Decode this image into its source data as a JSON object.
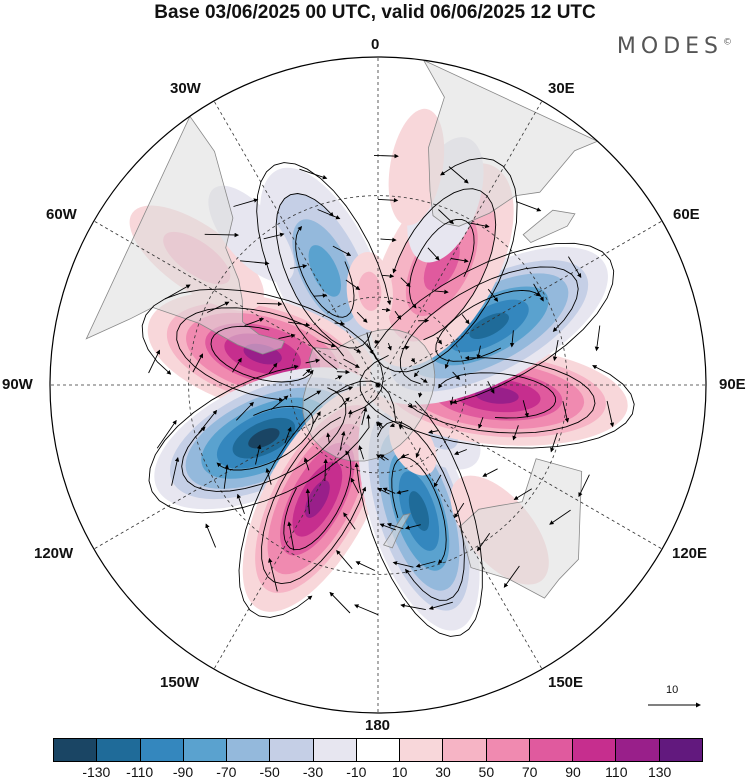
{
  "title": "Base 03/06/2025 00 UTC, valid 06/06/2025 12 UTC",
  "brand": "MODES",
  "brand_mark": "©",
  "longitude_labels": {
    "top": "0",
    "top_left": "30W",
    "top_right": "30E",
    "upper_left": "60W",
    "upper_right": "60E",
    "left": "90W",
    "right": "90E",
    "lower_left": "120W",
    "lower_right": "120E",
    "bottom_left": "150W",
    "bottom_right": "150E",
    "bottom": "180"
  },
  "reference_vector": {
    "label": "10"
  },
  "colorbar": {
    "colors": [
      "#1a4564",
      "#1f6b99",
      "#3487be",
      "#5aa2cf",
      "#94b9dc",
      "#c5cfe6",
      "#e7e6f0",
      "#ffffff",
      "#f8d7da",
      "#f6b4c5",
      "#f08ab0",
      "#e05a9e",
      "#c62e8e",
      "#991f8a",
      "#62197e"
    ],
    "ticks": [
      "-130",
      "-110",
      "-90",
      "-70",
      "-50",
      "-30",
      "-10",
      "10",
      "30",
      "50",
      "70",
      "90",
      "110",
      "130"
    ]
  },
  "colors": {
    "land": "#dcdcdc",
    "coast": "#888888",
    "grid": "#333333",
    "stream": "#000000"
  },
  "anomalies": [
    {
      "lon": -25,
      "lat": -48,
      "value": -85,
      "rx": 0.17,
      "ry": 0.075
    },
    {
      "lon": -75,
      "lat": -50,
      "value": 125,
      "rx": 0.18,
      "ry": 0.085
    },
    {
      "lon": -115,
      "lat": -48,
      "value": -130,
      "rx": 0.18,
      "ry": 0.085
    },
    {
      "lon": -152,
      "lat": -47,
      "value": 120,
      "rx": 0.19,
      "ry": 0.08
    },
    {
      "lon": 162,
      "lat": -46,
      "value": -110,
      "rx": 0.19,
      "ry": 0.075
    },
    {
      "lon": 128,
      "lat": -65,
      "value": -40,
      "rx": 0.08,
      "ry": 0.045
    },
    {
      "lon": 150,
      "lat": -66,
      "value": 25,
      "rx": 0.05,
      "ry": 0.03
    },
    {
      "lon": 95,
      "lat": -50,
      "value": 115,
      "rx": 0.2,
      "ry": 0.075
    },
    {
      "lon": 62,
      "lat": -48,
      "value": -125,
      "rx": 0.2,
      "ry": 0.085
    },
    {
      "lon": 28,
      "lat": -45,
      "value": 75,
      "rx": 0.17,
      "ry": 0.085
    },
    {
      "lon": 20,
      "lat": -28,
      "value": -20,
      "rx": 0.1,
      "ry": 0.05
    },
    {
      "lon": -55,
      "lat": -22,
      "value": 45,
      "rx": 0.12,
      "ry": 0.05
    },
    {
      "lon": -5,
      "lat": -58,
      "value": 45,
      "rx": 0.06,
      "ry": 0.035
    },
    {
      "lon": -40,
      "lat": -28,
      "value": -25,
      "rx": 0.09,
      "ry": 0.04
    },
    {
      "lon": 10,
      "lat": -22,
      "value": 25,
      "rx": 0.09,
      "ry": 0.04
    },
    {
      "lon": 140,
      "lat": -30,
      "value": 20,
      "rx": 0.1,
      "ry": 0.05
    }
  ]
}
